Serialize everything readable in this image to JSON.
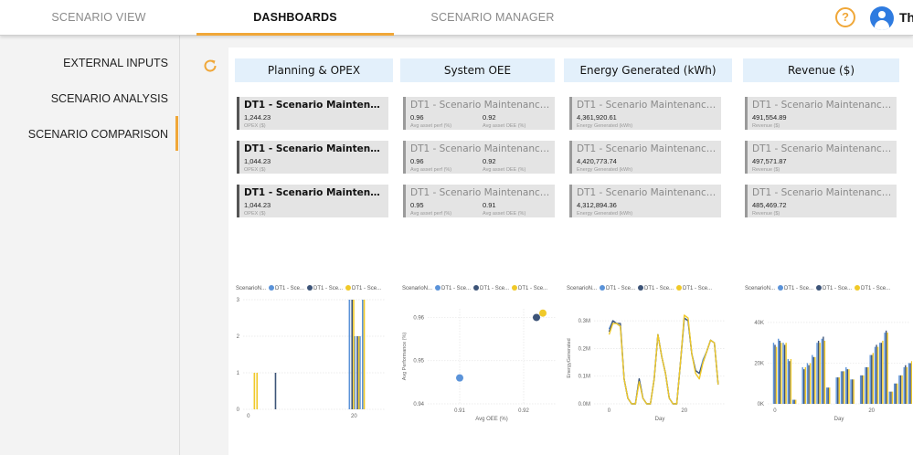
{
  "nav": {
    "tabs": [
      {
        "label": "SCENARIO VIEW"
      },
      {
        "label": "DASHBOARDS"
      },
      {
        "label": "SCENARIO MANAGER"
      }
    ],
    "help_glyph": "?",
    "user_label": "Th",
    "accent_color": "#f0a738"
  },
  "sidebar": {
    "items": [
      {
        "label": "EXTERNAL INPUTS"
      },
      {
        "label": "SCENARIO ANALYSIS"
      },
      {
        "label": "SCENARIO COMPARISON"
      }
    ]
  },
  "icons": {
    "refresh": "refresh-icon",
    "help": "help-icon",
    "avatar": "user-icon"
  },
  "columns": [
    {
      "header": "Planning & OPEX",
      "cards": [
        {
          "title": "DT1 - Scenario Maintenance Prio...",
          "value": "1,244.23",
          "label": "OPEX ($)"
        },
        {
          "title": "DT1 - Scenario Maintenance Opt...",
          "value": "1,044.23",
          "label": "OPEX ($)"
        },
        {
          "title": "DT1 - Scenario Maintenance Opp...",
          "value": "1,044.23",
          "label": "OPEX ($)"
        }
      ]
    },
    {
      "header": "System OEE",
      "cards": [
        {
          "title": "DT1 - Scenario Maintenance Prio...",
          "value": "0.96",
          "label": "Avg asset perf (%)",
          "value2": "0.92",
          "label2": "Avg asset OEE (%)"
        },
        {
          "title": "DT1 - Scenario Maintenance Opt...",
          "value": "0.96",
          "label": "Avg asset perf (%)",
          "value2": "0.92",
          "label2": "Avg asset OEE (%)"
        },
        {
          "title": "DT1 - Scenario Maintenance Opp...",
          "value": "0.95",
          "label": "Avg asset perf (%)",
          "value2": "0.91",
          "label2": "Avg asset OEE (%)"
        }
      ]
    },
    {
      "header": "Energy Generated (kWh)",
      "cards": [
        {
          "title": "DT1 - Scenario Maintenance Prior...",
          "value": "4,361,920.61",
          "label": "Energy Generated (kWh)"
        },
        {
          "title": "DT1 - Scenario Maintenance Opti...",
          "value": "4,420,773.74",
          "label": "Energy Generated (kWh)"
        },
        {
          "title": "DT1 - Scenario Maintenance Opp...",
          "value": "4,312,894.36",
          "label": "Energy Generated (kWh)"
        }
      ]
    },
    {
      "header": "Revenue ($)",
      "cards": [
        {
          "title": "DT1 - Scenario Maintenance Prior...",
          "value": "491,554.89",
          "label": "Revenue ($)"
        },
        {
          "title": "DT1 - Scenario Maintenance Opti...",
          "value": "497,571.87",
          "label": "Revenue ($)"
        },
        {
          "title": "DT1 - Scenario Maintenance Opp...",
          "value": "485,469.72",
          "label": "Revenue ($)"
        }
      ]
    }
  ],
  "legend": {
    "title": "ScenarioN...",
    "items": [
      {
        "label": "DT1 - Sce...",
        "color": "#5b93d9"
      },
      {
        "label": "DT1 - Sce...",
        "color": "#3d5478"
      },
      {
        "label": "DT1 - Sce...",
        "color": "#f0c929"
      }
    ]
  },
  "chart_data": [
    {
      "type": "bar",
      "x_ticks": [
        "0",
        "20"
      ],
      "y_ticks": [
        "0",
        "1",
        "2",
        "3"
      ],
      "xlim": [
        -1,
        26
      ],
      "ylim": [
        0,
        3
      ],
      "grid": true,
      "series": [
        {
          "values": [
            [
              19,
              3
            ],
            [
              20,
              2
            ],
            [
              21,
              2
            ],
            [
              21.5,
              3
            ]
          ]
        },
        {
          "values": [
            [
              5,
              1
            ],
            [
              19.5,
              3
            ],
            [
              20.5,
              2
            ]
          ]
        },
        {
          "values": [
            [
              1,
              1
            ],
            [
              1.5,
              1
            ],
            [
              19.8,
              3
            ],
            [
              20.8,
              2
            ],
            [
              21.8,
              3
            ]
          ]
        }
      ]
    },
    {
      "type": "scatter",
      "xlabel": "Avg OEE (%)",
      "ylabel": "Avg Performance (%)",
      "x_ticks": [
        "0.91",
        "0.92"
      ],
      "y_ticks": [
        "0.94",
        "0.95",
        "0.96"
      ],
      "xlim": [
        0.905,
        0.925
      ],
      "ylim": [
        0.94,
        0.962
      ],
      "grid": true,
      "points": [
        {
          "x": 0.91,
          "y": 0.946
        },
        {
          "x": 0.922,
          "y": 0.96
        },
        {
          "x": 0.923,
          "y": 0.961
        }
      ]
    },
    {
      "type": "line",
      "xlabel": "Day",
      "ylabel": "EnergyGenerated",
      "x_ticks": [
        "0",
        "20"
      ],
      "y_ticks": [
        "0.0M",
        "0.1M",
        "0.2M",
        "0.3M"
      ],
      "xlim": [
        -4,
        31
      ],
      "ylim": [
        0,
        0.33
      ],
      "grid": true,
      "series": [
        {
          "x": [
            0,
            1,
            2,
            3,
            4,
            5,
            6,
            7,
            8,
            9,
            10,
            11,
            12,
            13,
            14,
            15,
            16,
            17,
            18,
            19,
            20,
            21,
            22,
            23,
            24,
            25,
            26,
            27,
            28,
            29
          ],
          "y": [
            0.27,
            0.3,
            0.29,
            0.28,
            0.09,
            0.02,
            0,
            0,
            0.09,
            0.02,
            0,
            0,
            0.09,
            0.25,
            0.17,
            0.11,
            0.02,
            0,
            0,
            0.15,
            0.31,
            0.3,
            0.18,
            0.12,
            0.11,
            0.16,
            0.19,
            0.23,
            0.22,
            0.07
          ]
        },
        {
          "x": [
            0,
            1,
            2,
            3,
            4,
            5,
            6,
            7,
            8,
            9,
            10,
            11,
            12,
            13,
            14,
            15,
            16,
            17,
            18,
            19,
            20,
            21,
            22,
            23,
            24,
            25,
            26,
            27,
            28,
            29
          ],
          "y": [
            0.26,
            0.3,
            0.29,
            0.29,
            0.09,
            0.02,
            0,
            0,
            0.09,
            0.02,
            0,
            0,
            0.09,
            0.25,
            0.17,
            0.11,
            0.02,
            0,
            0,
            0.15,
            0.31,
            0.3,
            0.18,
            0.12,
            0.11,
            0.15,
            0.19,
            0.23,
            0.22,
            0.07
          ]
        },
        {
          "x": [
            0,
            1,
            2,
            3,
            4,
            5,
            6,
            7,
            8,
            9,
            10,
            11,
            12,
            13,
            14,
            15,
            16,
            17,
            18,
            19,
            20,
            21,
            22,
            23,
            24,
            25,
            26,
            27,
            28,
            29
          ],
          "y": [
            0.25,
            0.29,
            0.29,
            0.28,
            0.09,
            0.02,
            0,
            0,
            0.08,
            0.02,
            0,
            0,
            0.09,
            0.25,
            0.17,
            0.11,
            0.02,
            0,
            0,
            0.15,
            0.32,
            0.31,
            0.18,
            0.11,
            0.09,
            0.15,
            0.19,
            0.23,
            0.22,
            0.07
          ]
        }
      ]
    },
    {
      "type": "bar",
      "xlabel": "Day",
      "x_ticks": [
        "0",
        "20"
      ],
      "y_ticks": [
        "0K",
        "20K",
        "40K"
      ],
      "xlim": [
        -1.5,
        28
      ],
      "ylim": [
        0,
        44000
      ],
      "grid": true,
      "series": [
        {
          "values": [
            30000,
            32000,
            30000,
            22000,
            2000,
            0,
            18000,
            20000,
            24000,
            30000,
            32000,
            8000,
            0,
            13000,
            16000,
            18000,
            12000,
            0,
            14000,
            18000,
            24000,
            28000,
            30000,
            35000,
            6000,
            10000,
            14000,
            18000,
            20000,
            14000
          ]
        },
        {
          "values": [
            29000,
            31000,
            29000,
            21000,
            2000,
            0,
            17000,
            19000,
            23000,
            31000,
            33000,
            8000,
            0,
            13000,
            16000,
            17000,
            12000,
            0,
            14000,
            18000,
            24000,
            29000,
            30000,
            36000,
            6000,
            10000,
            14000,
            19000,
            20000,
            14000
          ]
        },
        {
          "values": [
            28000,
            30000,
            30000,
            22000,
            2000,
            0,
            18000,
            20000,
            23000,
            30000,
            31000,
            8000,
            0,
            13000,
            16000,
            17000,
            12000,
            0,
            14000,
            18000,
            25000,
            28000,
            31000,
            35000,
            6000,
            10000,
            14000,
            18000,
            21000,
            13000
          ]
        }
      ]
    }
  ]
}
